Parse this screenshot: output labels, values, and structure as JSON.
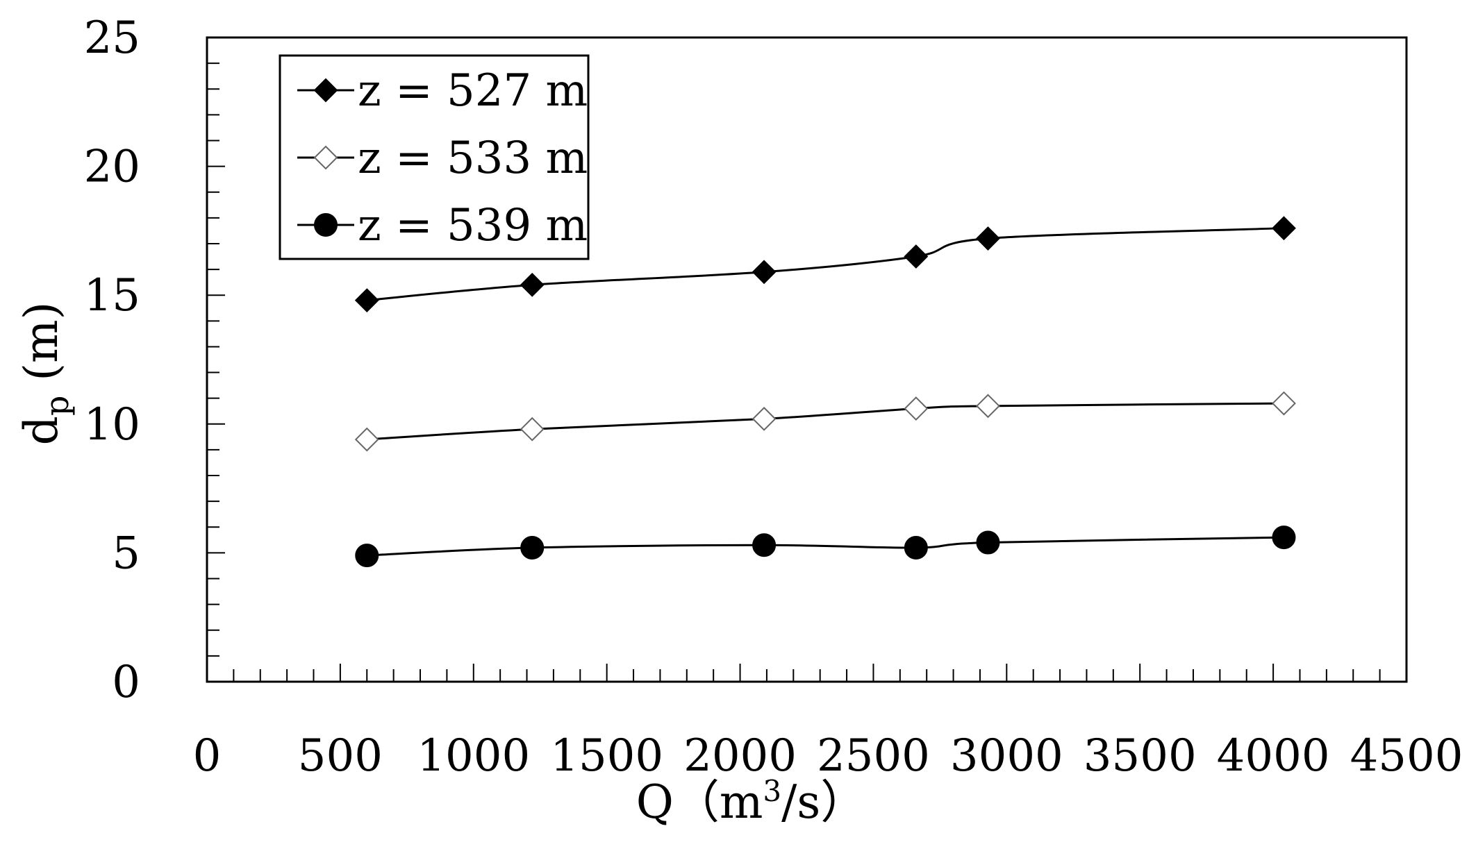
{
  "chart_data": {
    "type": "line",
    "xlabel": {
      "base": "Q",
      "pre": "（m",
      "sup": "3",
      "post": "/s）"
    },
    "ylabel": {
      "base": "d",
      "sub": "p",
      "post": " (m)"
    },
    "xlim": [
      0,
      4500
    ],
    "ylim": [
      0,
      25
    ],
    "x_ticks": [
      0,
      500,
      1000,
      1500,
      2000,
      2500,
      3000,
      3500,
      4000,
      4500
    ],
    "y_ticks": [
      0,
      5,
      10,
      15,
      20,
      25
    ],
    "x_tick_labels": [
      "0",
      "500",
      "1000",
      "1500",
      "2000",
      "2500",
      "3000",
      "3500",
      "4000",
      "4500"
    ],
    "y_tick_labels": [
      "0",
      "5",
      "10",
      "15",
      "20",
      "25"
    ],
    "grid": false,
    "legend_position": "top-left",
    "x": [
      600,
      1220,
      2090,
      2660,
      2930,
      4040
    ],
    "series": [
      {
        "name": "z = 527 m",
        "marker": "filled-diamond",
        "values": [
          14.8,
          15.4,
          15.9,
          16.5,
          17.2,
          17.6
        ]
      },
      {
        "name": "z = 533 m",
        "marker": "open-diamond",
        "values": [
          9.4,
          9.8,
          10.2,
          10.6,
          10.7,
          10.8
        ]
      },
      {
        "name": "z = 539 m",
        "marker": "filled-circle",
        "values": [
          4.9,
          5.2,
          5.3,
          5.2,
          5.4,
          5.6
        ]
      }
    ]
  }
}
